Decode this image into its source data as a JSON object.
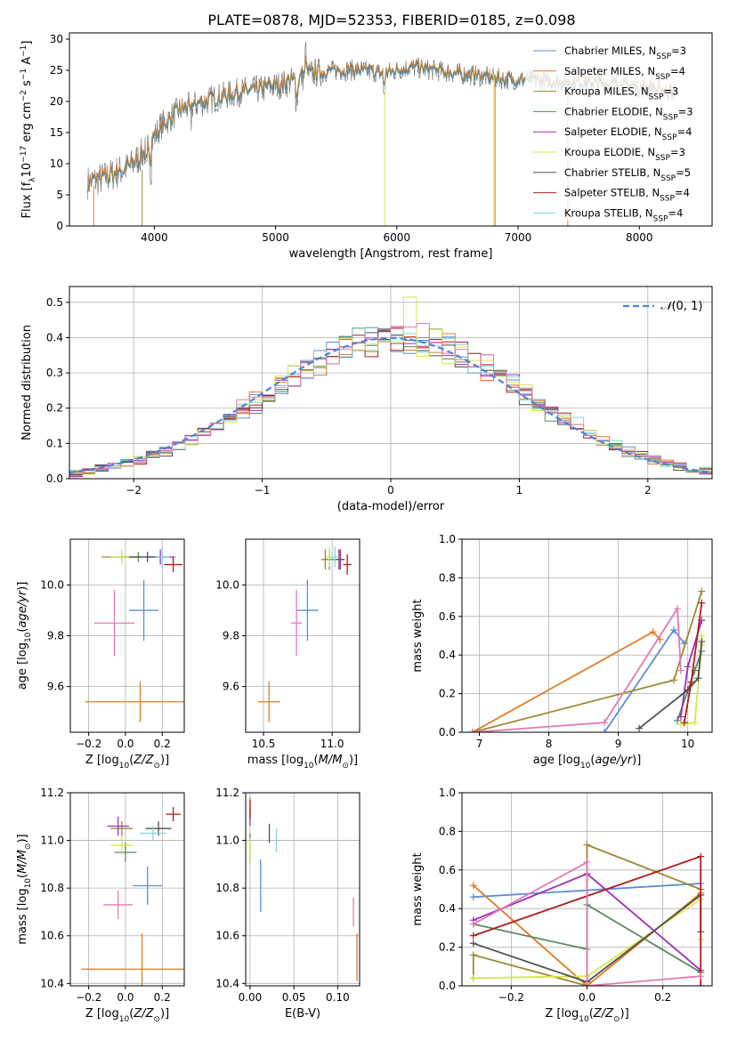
{
  "figure_title": "PLATE=0878, MJD=52353, FIBERID=0185, z=0.098",
  "colors": {
    "chabrier_miles": "#5b8fd6",
    "salpeter_miles": "#e07b22",
    "kroupa_miles": "#9a8a30",
    "chabrier_elodie": "#5a8a5e",
    "salpeter_elodie": "#a02fb8",
    "kroupa_elodie": "#d5e84a",
    "chabrier_stelib": "#505050",
    "salpeter_stelib": "#b01c1c",
    "kroupa_stelib": "#86d6dc",
    "spectrum": "#6f6f6f",
    "pink": "#e07ab5",
    "grid": "#b0b0b0"
  },
  "chart_data": [
    {
      "id": "spectrum",
      "type": "line",
      "title": "PLATE=0878, MJD=52353, FIBERID=0185, z=0.098",
      "xlabel": "wavelength [Angstrom, rest frame]",
      "ylabel": "Flux [f_λ10^-17 erg cm^-2 s^-1 A^-1]",
      "xlim": [
        3300,
        8600
      ],
      "ylim": [
        0,
        31
      ],
      "xticks": [
        4000,
        5000,
        6000,
        7000,
        8000
      ],
      "yticks": [
        0,
        5,
        10,
        15,
        20,
        25,
        30
      ],
      "grid": false,
      "legend": "top-right",
      "continuum": [
        [
          3450,
          7.0
        ],
        [
          3600,
          7.8
        ],
        [
          3800,
          9.5
        ],
        [
          3950,
          12.5
        ],
        [
          4050,
          16
        ],
        [
          4200,
          18.5
        ],
        [
          4350,
          19.5
        ],
        [
          4500,
          20.5
        ],
        [
          4700,
          21.5
        ],
        [
          4900,
          22
        ],
        [
          5100,
          23
        ],
        [
          5300,
          24.5
        ],
        [
          5500,
          25
        ],
        [
          5700,
          25
        ],
        [
          5900,
          24.5
        ],
        [
          6100,
          25.5
        ],
        [
          6300,
          25
        ],
        [
          6500,
          24.5
        ],
        [
          6700,
          24
        ],
        [
          6900,
          23.5
        ],
        [
          7100,
          23.5
        ],
        [
          7300,
          23.2
        ],
        [
          7500,
          23
        ],
        [
          7700,
          23
        ],
        [
          7900,
          22.5
        ],
        [
          8100,
          22
        ],
        [
          8300,
          21.5
        ]
      ],
      "series": [
        {
          "name": "Chabrier MILES, N_SSP=3"
        },
        {
          "name": "Salpeter MILES, N_SSP=4"
        },
        {
          "name": "Kroupa MILES, N_SSP=3"
        },
        {
          "name": "Chabrier ELODIE, N_SSP=3"
        },
        {
          "name": "Salpeter ELODIE, N_SSP=4"
        },
        {
          "name": "Kroupa ELODIE, N_SSP=3"
        },
        {
          "name": "Chabrier STELIB, N_SSP=5"
        },
        {
          "name": "Salpeter STELIB, N_SSP=4"
        },
        {
          "name": "Kroupa STELIB, N_SSP=4"
        }
      ]
    },
    {
      "id": "residuals",
      "type": "histogram",
      "xlabel": "(data-model)/error",
      "ylabel": "Normed distribution",
      "xlim": [
        -2.5,
        2.5
      ],
      "ylim": [
        0,
        0.545
      ],
      "xticks": [
        -2,
        -1,
        0,
        1,
        2
      ],
      "yticks": [
        0.0,
        0.1,
        0.2,
        0.3,
        0.4,
        0.5
      ],
      "grid": true,
      "legend": "top-right",
      "legend_label": "N(0,1)",
      "bin_width": 0.1,
      "reference_curve": "standard normal"
    },
    {
      "id": "age_vs_z",
      "type": "scatter",
      "xlabel": "Z [log10(Z/Z⊙)]",
      "ylabel": "age  [log10(age/yr)]",
      "xlim": [
        -0.3,
        0.32
      ],
      "ylim": [
        9.42,
        10.18
      ],
      "xticks": [
        -0.2,
        0.0,
        0.2
      ],
      "yticks": [
        9.6,
        9.8,
        10.0
      ],
      "grid": true,
      "points": [
        {
          "x": 0.1,
          "y": 9.9,
          "xerr": 0.08,
          "yerr": 0.12
        },
        {
          "x": 0.08,
          "y": 9.54,
          "xerr": 0.3,
          "yerr": 0.08
        },
        {
          "x": -0.02,
          "y": 10.11,
          "xerr": 0.11,
          "yerr": 0.02
        },
        {
          "x": 0.07,
          "y": 10.11,
          "xerr": 0.11,
          "yerr": 0.02
        },
        {
          "x": 0.19,
          "y": 10.11,
          "xerr": 0.08,
          "yerr": 0.03
        },
        {
          "x": -0.02,
          "y": 10.11,
          "xerr": 0.06,
          "yerr": 0.03
        },
        {
          "x": 0.12,
          "y": 10.11,
          "xerr": 0.1,
          "yerr": 0.02
        },
        {
          "x": 0.26,
          "y": 10.08,
          "xerr": 0.05,
          "yerr": 0.03
        },
        {
          "x": 0.2,
          "y": 10.11,
          "xerr": 0.04,
          "yerr": 0.04
        },
        {
          "x": -0.06,
          "y": 9.85,
          "xerr": 0.11,
          "yerr": 0.13
        }
      ]
    },
    {
      "id": "age_vs_mass",
      "type": "scatter",
      "xlabel": "mass [log10(M/M⊙)]",
      "ylabel": "",
      "xlim": [
        10.37,
        11.2
      ],
      "ylim": [
        9.42,
        10.18
      ],
      "xticks": [
        10.5,
        11.0
      ],
      "yticks": [
        9.6,
        9.8,
        10.0
      ],
      "grid": true,
      "points": [
        {
          "x": 10.82,
          "y": 9.9,
          "xerr": 0.08,
          "yerr": 0.12
        },
        {
          "x": 10.54,
          "y": 9.54,
          "xerr": 0.08,
          "yerr": 0.08
        },
        {
          "x": 10.95,
          "y": 10.1,
          "xerr": 0.03,
          "yerr": 0.04
        },
        {
          "x": 10.98,
          "y": 10.1,
          "xerr": 0.03,
          "yerr": 0.04
        },
        {
          "x": 11.06,
          "y": 10.1,
          "xerr": 0.03,
          "yerr": 0.04
        },
        {
          "x": 10.98,
          "y": 10.11,
          "xerr": 0.02,
          "yerr": 0.04
        },
        {
          "x": 11.05,
          "y": 10.1,
          "xerr": 0.04,
          "yerr": 0.04
        },
        {
          "x": 11.11,
          "y": 10.08,
          "xerr": 0.03,
          "yerr": 0.04
        },
        {
          "x": 11.02,
          "y": 10.11,
          "xerr": 0.03,
          "yerr": 0.04
        },
        {
          "x": 10.74,
          "y": 9.85,
          "xerr": 0.04,
          "yerr": 0.13
        }
      ]
    },
    {
      "id": "weight_vs_age",
      "type": "line",
      "xlabel": "age  [log10(age/yr)]",
      "ylabel": "mass weight",
      "xlim": [
        6.75,
        10.35
      ],
      "ylim": [
        0,
        1.0
      ],
      "xticks": [
        7,
        8,
        9,
        10
      ],
      "yticks": [
        0.0,
        0.2,
        0.4,
        0.6,
        0.8,
        1.0
      ],
      "grid": true,
      "series": [
        {
          "x": [
            8.8,
            9.8,
            9.95
          ],
          "y": [
            0.0,
            0.53,
            0.46
          ]
        },
        {
          "x": [
            6.9,
            9.5,
            9.6
          ],
          "y": [
            0.0,
            0.52,
            0.48
          ]
        },
        {
          "x": [
            6.9,
            9.8,
            10.2
          ],
          "y": [
            0.0,
            0.27,
            0.73
          ]
        },
        {
          "x": [
            9.85,
            10.1,
            10.2
          ],
          "y": [
            0.06,
            0.32,
            0.42
          ]
        },
        {
          "x": [
            9.9,
            10.0,
            10.2
          ],
          "y": [
            0.08,
            0.34,
            0.58
          ]
        },
        {
          "x": [
            9.9,
            10.1,
            10.2,
            10.2
          ],
          "y": [
            0.04,
            0.05,
            0.45,
            0.5
          ]
        },
        {
          "x": [
            9.3,
            10.0,
            10.15,
            10.2
          ],
          "y": [
            0.02,
            0.22,
            0.28,
            0.47
          ]
        },
        {
          "x": [
            9.95,
            10.05,
            10.2
          ],
          "y": [
            0.05,
            0.26,
            0.67
          ]
        },
        {
          "x": [
            6.9,
            8.8,
            9.85,
            9.9
          ],
          "y": [
            0.0,
            0.05,
            0.64,
            0.32
          ]
        }
      ]
    },
    {
      "id": "mass_vs_z",
      "type": "scatter",
      "xlabel": "Z [log10(Z/Z⊙)]",
      "ylabel": "mass [log10(M/M⊙)]",
      "xlim": [
        -0.3,
        0.32
      ],
      "ylim": [
        10.39,
        11.2
      ],
      "xticks": [
        -0.2,
        0.0,
        0.2
      ],
      "yticks": [
        10.4,
        10.6,
        10.8,
        11.0,
        11.2
      ],
      "grid": true,
      "points": [
        {
          "x": 0.12,
          "y": 10.81,
          "xerr": 0.08,
          "yerr": 0.08
        },
        {
          "x": 0.09,
          "y": 10.46,
          "xerr": 0.33,
          "yerr": 0.15
        },
        {
          "x": -0.02,
          "y": 11.05,
          "xerr": 0.06,
          "yerr": 0.03
        },
        {
          "x": 0.0,
          "y": 10.95,
          "xerr": 0.06,
          "yerr": 0.04
        },
        {
          "x": -0.04,
          "y": 11.06,
          "xerr": 0.06,
          "yerr": 0.04
        },
        {
          "x": -0.02,
          "y": 10.98,
          "xerr": 0.06,
          "yerr": 0.04
        },
        {
          "x": 0.18,
          "y": 11.05,
          "xerr": 0.07,
          "yerr": 0.03
        },
        {
          "x": 0.26,
          "y": 11.11,
          "xerr": 0.04,
          "yerr": 0.03
        },
        {
          "x": 0.15,
          "y": 11.03,
          "xerr": 0.07,
          "yerr": 0.03
        },
        {
          "x": -0.04,
          "y": 10.73,
          "xerr": 0.08,
          "yerr": 0.06
        }
      ]
    },
    {
      "id": "mass_vs_ebv",
      "type": "scatter",
      "xlabel": "E(B-V)",
      "ylabel": "",
      "xlim": [
        -0.005,
        0.125
      ],
      "ylim": [
        10.39,
        11.2
      ],
      "xticks": [
        0.0,
        0.05,
        0.1
      ],
      "yticks": [
        10.4,
        10.6,
        10.8,
        11.0,
        11.2
      ],
      "grid": true,
      "points": [
        {
          "x": 0.012,
          "y": 10.81,
          "xerr": 0.0,
          "yerr": 0.11
        },
        {
          "x": 0.122,
          "y": 10.51,
          "xerr": 0.0,
          "yerr": 0.1
        },
        {
          "x": 0.0,
          "y": 11.15,
          "xerr": 0.0,
          "yerr": 0.03
        },
        {
          "x": 0.0,
          "y": 10.97,
          "xerr": 0.0,
          "yerr": 0.06
        },
        {
          "x": 0.0,
          "y": 11.09,
          "xerr": 0.0,
          "yerr": 0.03
        },
        {
          "x": 0.0,
          "y": 10.96,
          "xerr": 0.0,
          "yerr": 0.05
        },
        {
          "x": 0.022,
          "y": 11.03,
          "xerr": 0.0,
          "yerr": 0.04
        },
        {
          "x": 0.0,
          "y": 11.13,
          "xerr": 0.0,
          "yerr": 0.04
        },
        {
          "x": 0.03,
          "y": 11.0,
          "xerr": 0.0,
          "yerr": 0.05
        },
        {
          "x": 0.118,
          "y": 10.7,
          "xerr": 0.0,
          "yerr": 0.06
        }
      ]
    },
    {
      "id": "weight_vs_z",
      "type": "line",
      "xlabel": "Z [log10(Z/Z⊙)]",
      "ylabel": "mass weight",
      "xlim": [
        -0.33,
        0.33
      ],
      "ylim": [
        0,
        1.0
      ],
      "xticks": [
        -0.2,
        0.0,
        0.2
      ],
      "yticks": [
        0.0,
        0.2,
        0.4,
        0.6,
        0.8,
        1.0
      ],
      "grid": true,
      "series": [
        {
          "x": [
            -0.3,
            0.3
          ],
          "y": [
            0.46,
            0.53
          ]
        },
        {
          "x": [
            -0.3,
            0.0,
            0.3
          ],
          "y": [
            0.52,
            0.0,
            0.48
          ]
        },
        {
          "x": [
            -0.3,
            -0.3,
            0.0,
            0.0,
            0.3
          ],
          "y": [
            0.04,
            0.16,
            0.0,
            0.73,
            0.5
          ]
        },
        {
          "x": [
            -0.3,
            0.0,
            0.0,
            0.3
          ],
          "y": [
            0.32,
            0.19,
            0.42,
            0.07
          ]
        },
        {
          "x": [
            -0.3,
            0.0,
            0.3
          ],
          "y": [
            0.34,
            0.58,
            0.08
          ]
        },
        {
          "x": [
            -0.3,
            0.0,
            0.3,
            0.3
          ],
          "y": [
            0.04,
            0.05,
            0.45,
            0.24
          ]
        },
        {
          "x": [
            -0.3,
            0.0,
            0.3,
            0.3
          ],
          "y": [
            0.22,
            0.02,
            0.47,
            0.28
          ]
        },
        {
          "x": [
            -0.3,
            0.3,
            0.3
          ],
          "y": [
            0.26,
            0.67,
            0.0
          ]
        },
        {
          "x": [
            -0.3,
            0.0,
            0.0,
            0.3
          ],
          "y": [
            0.32,
            0.64,
            0.0,
            0.05
          ]
        }
      ]
    }
  ]
}
